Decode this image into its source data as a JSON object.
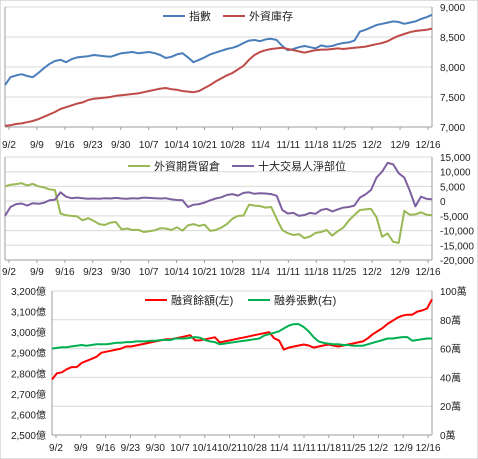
{
  "chart_data": [
    {
      "type": "line",
      "x": [
        "9/2",
        "9/3",
        "9/4",
        "9/5",
        "9/6",
        "9/9",
        "9/10",
        "9/11",
        "9/12",
        "9/13",
        "9/16",
        "9/17",
        "9/18",
        "9/19",
        "9/20",
        "9/23",
        "9/24",
        "9/25",
        "9/26",
        "9/27",
        "9/30",
        "10/1",
        "10/2",
        "10/3",
        "10/4",
        "10/7",
        "10/8",
        "10/9",
        "10/11",
        "10/14",
        "10/15",
        "10/16",
        "10/17",
        "10/18",
        "10/21",
        "10/22",
        "10/23",
        "10/24",
        "10/25",
        "10/28",
        "10/29",
        "10/30",
        "10/31",
        "11/1",
        "11/4",
        "11/5",
        "11/6",
        "11/7",
        "11/8",
        "11/11",
        "11/12",
        "11/13",
        "11/14",
        "11/15",
        "11/18",
        "11/19",
        "11/20",
        "11/21",
        "11/22",
        "11/25",
        "11/26",
        "11/27",
        "11/28",
        "11/29",
        "12/2",
        "12/3",
        "12/4",
        "12/5",
        "12/6",
        "12/9",
        "12/10",
        "12/11",
        "12/12",
        "12/13",
        "12/16",
        "12/17",
        "12/18",
        "12/19"
      ],
      "x_tick_labels": [
        "9/2",
        "9/9",
        "9/16",
        "9/23",
        "9/30",
        "10/7",
        "10/14",
        "10/21",
        "10/28",
        "11/4",
        "11/11",
        "11/18",
        "11/25",
        "12/2",
        "12/9",
        "12/16"
      ],
      "series": [
        {
          "name": "指數",
          "color": "#4a7ebb",
          "axis": "left",
          "values": [
            7700,
            7830,
            7860,
            7880,
            7850,
            7830,
            7900,
            7980,
            8050,
            8100,
            8120,
            8080,
            8130,
            8160,
            8170,
            8180,
            8200,
            8190,
            8180,
            8170,
            8200,
            8230,
            8240,
            8250,
            8230,
            8240,
            8250,
            8230,
            8200,
            8150,
            8170,
            8210,
            8230,
            8160,
            8080,
            8120,
            8160,
            8210,
            8240,
            8270,
            8300,
            8320,
            8350,
            8400,
            8440,
            8450,
            8430,
            8460,
            8470,
            8450,
            8350,
            8280,
            8300,
            8330,
            8350,
            8330,
            8310,
            8360,
            8340,
            8350,
            8380,
            8400,
            8410,
            8440,
            8590,
            8620,
            8660,
            8700,
            8720,
            8740,
            8760,
            8750,
            8720,
            8740,
            8760,
            8800,
            8830,
            8870
          ]
        },
        {
          "name": "外資庫存",
          "color": "#be4b48",
          "axis": "left",
          "values": [
            7020,
            7030,
            7050,
            7060,
            7080,
            7100,
            7130,
            7170,
            7210,
            7250,
            7300,
            7330,
            7360,
            7390,
            7410,
            7450,
            7470,
            7480,
            7490,
            7500,
            7520,
            7530,
            7540,
            7550,
            7560,
            7580,
            7600,
            7620,
            7640,
            7650,
            7630,
            7620,
            7600,
            7590,
            7580,
            7600,
            7650,
            7700,
            7760,
            7810,
            7860,
            7900,
            7960,
            8020,
            8120,
            8200,
            8250,
            8280,
            8300,
            8310,
            8320,
            8300,
            8280,
            8260,
            8240,
            8260,
            8280,
            8290,
            8290,
            8300,
            8310,
            8300,
            8310,
            8320,
            8330,
            8340,
            8360,
            8380,
            8400,
            8430,
            8480,
            8520,
            8550,
            8580,
            8600,
            8610,
            8620,
            8640
          ]
        }
      ],
      "y_left": {
        "min": 7000,
        "max": 9000,
        "ticks": [
          "7,000",
          "7,500",
          "8,000",
          "8,500",
          "9,000"
        ]
      },
      "legend": "top"
    },
    {
      "type": "line",
      "x_tick_labels": [
        "9/2",
        "9/9",
        "9/16",
        "9/23",
        "9/30",
        "10/7",
        "10/14",
        "10/21",
        "10/28",
        "11/4",
        "11/11",
        "11/18",
        "11/25",
        "12/2",
        "12/9",
        "12/16"
      ],
      "series": [
        {
          "name": "外資期貨留倉",
          "color": "#98b954",
          "axis": "right",
          "values": [
            5000,
            5600,
            5800,
            6100,
            5300,
            5900,
            5000,
            4700,
            4000,
            3800,
            -4200,
            -4800,
            -5000,
            -5200,
            -6500,
            -5800,
            -6700,
            -7800,
            -8100,
            -7300,
            -7100,
            -9600,
            -9300,
            -9800,
            -9700,
            -10500,
            -10200,
            -9900,
            -9200,
            -9300,
            -9800,
            -8900,
            -10000,
            -8200,
            -7800,
            -8400,
            -8000,
            -10100,
            -9800,
            -9000,
            -7800,
            -6000,
            -5000,
            -4900,
            -1200,
            -1500,
            -1700,
            -2200,
            -2000,
            -6000,
            -9800,
            -10900,
            -11500,
            -11200,
            -12600,
            -12000,
            -10800,
            -10500,
            -9800,
            -11700,
            -10200,
            -9000,
            -6600,
            -4700,
            -3000,
            -2800,
            -2600,
            -5500,
            -12100,
            -11000,
            -13800,
            -14200,
            -3300,
            -4600,
            -4500,
            -3800,
            -4600,
            -4800
          ]
        },
        {
          "name": "十大交易人淨部位",
          "color": "#7d60a0",
          "axis": "right",
          "values": [
            -5000,
            -2000,
            -1000,
            -800,
            -1500,
            -700,
            -900,
            -600,
            300,
            500,
            3000,
            1500,
            1000,
            1200,
            1000,
            800,
            900,
            800,
            1000,
            900,
            1100,
            900,
            800,
            1000,
            900,
            1200,
            1100,
            1000,
            900,
            1000,
            600,
            400,
            300,
            -2000,
            -1200,
            -1000,
            -500,
            300,
            900,
            1300,
            2100,
            2400,
            1900,
            2800,
            3000,
            2500,
            2700,
            2600,
            2400,
            1800,
            -3000,
            -4200,
            -4000,
            -5000,
            -4700,
            -4000,
            -4300,
            -3000,
            -2600,
            -3500,
            -2800,
            -2200,
            -2000,
            -1500,
            1200,
            2300,
            3800,
            8000,
            10000,
            13000,
            12500,
            9500,
            8000,
            3500,
            -1800,
            1500,
            800,
            600
          ]
        }
      ],
      "y_right": {
        "min": -20000,
        "max": 15000,
        "ticks": [
          "15,000",
          "10,000",
          "5,000",
          "0",
          "-5,000",
          "-10,000",
          "-15,000",
          "-20,000"
        ]
      },
      "legend": "top"
    },
    {
      "type": "line",
      "x_tick_labels": [
        "9/2",
        "9/9",
        "9/16",
        "9/23",
        "9/30",
        "10/7",
        "10/14",
        "10/21",
        "10/28",
        "11/4",
        "11/11",
        "11/18",
        "11/25",
        "12/2",
        "12/9",
        "12/16"
      ],
      "series": [
        {
          "name": "融資餘額(左)",
          "color": "#ff0000",
          "axis": "left",
          "values": [
            2770,
            2800,
            2805,
            2820,
            2830,
            2830,
            2850,
            2860,
            2870,
            2880,
            2900,
            2905,
            2910,
            2915,
            2920,
            2930,
            2930,
            2935,
            2940,
            2945,
            2950,
            2955,
            2960,
            2965,
            2965,
            2970,
            2975,
            2980,
            2985,
            2960,
            2960,
            2965,
            2970,
            2975,
            2950,
            2955,
            2960,
            2965,
            2970,
            2975,
            2980,
            2985,
            2990,
            2995,
            3000,
            2970,
            2960,
            2915,
            2925,
            2930,
            2935,
            2940,
            2935,
            2925,
            2930,
            2935,
            2940,
            2935,
            2930,
            2935,
            2940,
            2945,
            2950,
            2955,
            2970,
            2990,
            3005,
            3020,
            3040,
            3055,
            3070,
            3080,
            3085,
            3085,
            3100,
            3105,
            3115,
            3160
          ]
        },
        {
          "name": "融券張數(右)",
          "color": "#00b050",
          "axis": "right",
          "values": [
            60,
            60.5,
            61,
            61,
            61.5,
            62,
            62.5,
            62,
            62.5,
            63,
            63,
            63,
            63.5,
            64,
            64,
            64.5,
            64.5,
            65,
            65,
            65,
            65.5,
            65.5,
            66,
            66,
            66,
            67,
            67,
            67,
            67.5,
            68,
            67.5,
            66,
            65,
            64.5,
            63,
            63.5,
            64,
            64.5,
            65,
            65.5,
            66,
            66.5,
            67,
            69,
            70,
            71,
            72,
            74,
            76,
            77,
            77,
            75,
            72,
            68,
            65,
            64,
            63.5,
            63,
            63,
            62.5,
            62.5,
            62,
            62,
            62,
            63,
            64,
            65,
            66,
            67,
            67,
            67.5,
            68,
            68,
            65.5,
            66,
            66.5,
            67,
            67
          ]
        }
      ],
      "y_left": {
        "min": 2500,
        "max": 3200,
        "ticks": [
          "3,200億",
          "3,100億",
          "3,000億",
          "2,900億",
          "2,800億",
          "2,700億",
          "2,600億",
          "2,500億"
        ]
      },
      "y_right": {
        "min": 0,
        "max": 100,
        "ticks": [
          "100萬",
          "80萬",
          "60萬",
          "40萬",
          "20萬",
          "0萬"
        ]
      },
      "legend": "top"
    }
  ]
}
